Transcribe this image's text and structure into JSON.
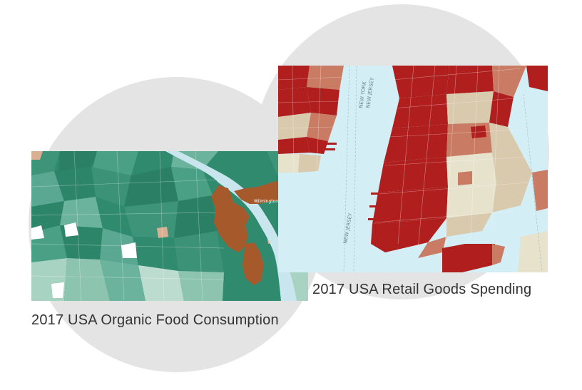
{
  "maps": [
    {
      "caption": "2017 USA Organic Food Consumption",
      "place_label": "Wilmington",
      "colors": {
        "high": "#2c8469",
        "mid": "#5aa891",
        "low": "#a8d3c3",
        "none": "#ffffff",
        "highlight": "#a65a2c",
        "water": "#c9e6ef"
      }
    },
    {
      "caption": "2017 USA Retail Goods Spending",
      "labels": [
        "NEW YORK",
        "NEW JERSEY",
        "NEW JERSEY"
      ],
      "colors": {
        "high": "#b01e1e",
        "mid": "#c97b63",
        "low": "#d9c9ad",
        "pale": "#e6e2cc",
        "water": "#d3eef5"
      }
    }
  ]
}
